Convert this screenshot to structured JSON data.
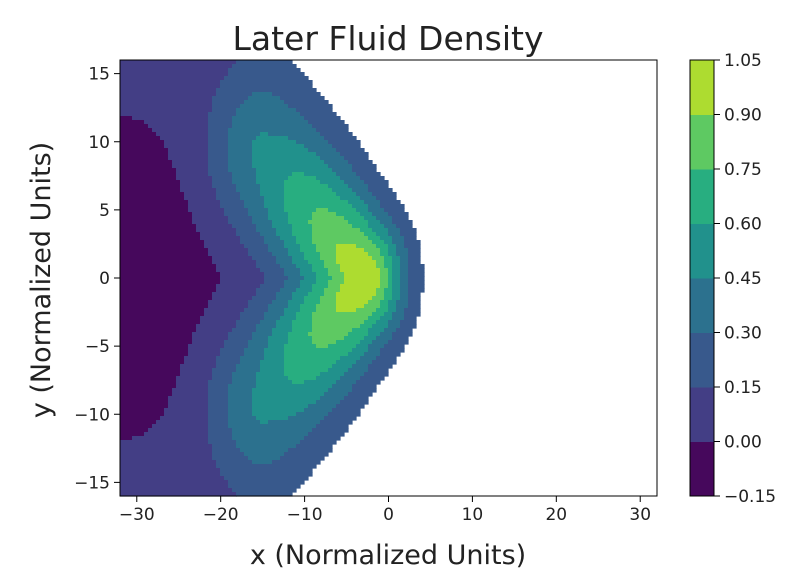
{
  "chart_data": {
    "type": "contour",
    "title": "Later Fluid Density",
    "xlabel": "x (Normalized Units)",
    "ylabel": "y (Normalized Units)",
    "xlim": [
      -32,
      32
    ],
    "ylim": [
      -16,
      16
    ],
    "x_ticks": [
      -30,
      -20,
      -10,
      0,
      10,
      20,
      30
    ],
    "x_tick_labels": [
      "−30",
      "−20",
      "−10",
      "0",
      "10",
      "20",
      "30"
    ],
    "y_ticks": [
      15,
      10,
      5,
      0,
      -5,
      -10,
      -15
    ],
    "y_tick_labels": [
      "15",
      "10",
      "5",
      "0",
      "−5",
      "−10",
      "−15"
    ],
    "colorbar": {
      "levels": [
        -0.15,
        0.0,
        0.15,
        0.3,
        0.45,
        0.6,
        0.75,
        0.9,
        1.05
      ],
      "tick_labels": [
        "−0.15",
        "0.00",
        "0.15",
        "0.30",
        "0.45",
        "0.60",
        "0.75",
        "0.90",
        "1.05"
      ],
      "colors": [
        "#46085c",
        "#433e85",
        "#38598c",
        "#2c718e",
        "#21918c",
        "#28ae80",
        "#5ec962",
        "#addc30",
        "#dde318"
      ]
    },
    "fields": {
      "chevron": {
        "apex_x": -3,
        "apex_y": 0,
        "arm_dx": -12,
        "arm_dy": 9,
        "peak": 1.0,
        "width": 3.3
      },
      "left_dip": {
        "x": -32,
        "y": 0,
        "value": -0.1,
        "sx": 11,
        "sy": 8
      },
      "background": 0.05
    }
  }
}
